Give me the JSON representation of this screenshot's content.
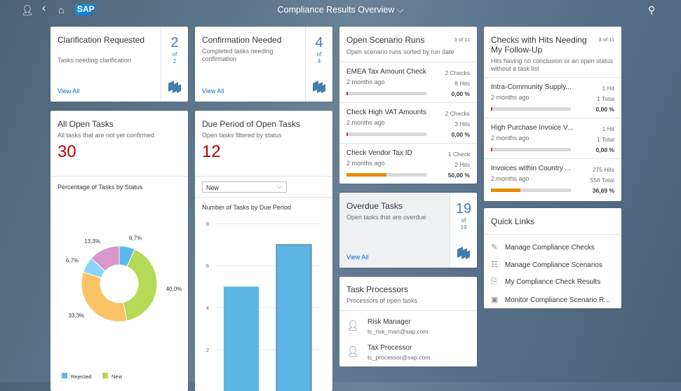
{
  "header": {
    "title": "Compliance Results Overview",
    "logo": "SAP",
    "icons": [
      "user-icon",
      "back-icon",
      "home-icon",
      "search-icon"
    ]
  },
  "cards": {
    "clarification": {
      "title": "Clarification Requested",
      "subtitle": "Tasks needing clarification",
      "count": "2",
      "of": "of",
      "total": "2",
      "link": "View All"
    },
    "confirmation": {
      "title": "Confirmation Needed",
      "subtitle": "Completed tasks needing confirmation",
      "count": "4",
      "of": "of",
      "total": "4",
      "link": "View All"
    },
    "all_open": {
      "title": "All Open Tasks",
      "subtitle": "All tasks that are not yet confirmed",
      "value": "30",
      "chart_title": "Percentage of Tasks by Status"
    },
    "due_period": {
      "title": "Due Period of Open Tasks",
      "subtitle": "Open tasks filtered by status",
      "value": "12",
      "filter": "New",
      "chart_title": "Number of Tasks by Due Period"
    },
    "scenario_runs": {
      "title": "Open Scenario Runs",
      "counter": "3 of 11",
      "subtitle": "Open scenario runs sorted by run date",
      "items": [
        {
          "name": "EMEA Tax Amount Check",
          "ago": "2 months ago",
          "checks": "2 Checks",
          "hits": "8 Hits",
          "pct": "0,00 %",
          "fill": 0
        },
        {
          "name": "Check High VAT Amounts",
          "ago": "2 months ago",
          "checks": "2 Checks",
          "hits": "3 Hits",
          "pct": "0,00 %",
          "fill": 0
        },
        {
          "name": "Check Vendor Tax ID",
          "ago": "2 months ago",
          "checks": "1 Check",
          "hits": "2 Hits",
          "pct": "50,00 %",
          "fill": 50
        }
      ]
    },
    "followup": {
      "title": "Checks with Hits Needing My Follow-Up",
      "counter": "3 of 11",
      "subtitle": "Hits having no conclusion or an open status without a task list",
      "items": [
        {
          "name": "Intra-Community Supply...",
          "ago": "2 months ago",
          "hits": "1 Hit",
          "total": "1 Total",
          "pct": "0,00 %",
          "fill": 0
        },
        {
          "name": "High Purchase Invoice V...",
          "ago": "2 months ago",
          "hits": "1 Hit",
          "total": "1 Total",
          "pct": "0,00 %",
          "fill": 0
        },
        {
          "name": "Invoices within Country ...",
          "ago": "2 months ago",
          "hits": "275 Hits",
          "total": "556 Total",
          "pct": "36,69 %",
          "fill": 36.69
        }
      ]
    },
    "overdue": {
      "title": "Overdue Tasks",
      "subtitle": "Open tasks that are overdue",
      "count": "19",
      "of": "of",
      "total": "19",
      "link": "View All"
    },
    "processors": {
      "title": "Task Processors",
      "subtitle": "Processors of open tasks",
      "people": [
        {
          "name": "Risk Manager",
          "email": "tc_risk_man@sap.com"
        },
        {
          "name": "Tax Processor",
          "email": "tc_processor@sap.com"
        }
      ]
    },
    "quick_links": {
      "title": "Quick Links",
      "items": [
        {
          "label": "Manage Compliance Checks",
          "icon": "pencil-icon",
          "glyph": "✎"
        },
        {
          "label": "Manage Compliance Scenarios",
          "icon": "checklist-icon",
          "glyph": "☷"
        },
        {
          "label": "My Compliance Check Results",
          "icon": "user-report-icon",
          "glyph": "⎘"
        },
        {
          "label": "Monitor Compliance Scenario R...",
          "icon": "monitor-icon",
          "glyph": "▣"
        }
      ]
    }
  },
  "chart_data": [
    {
      "type": "pie",
      "title": "Percentage of Tasks by Status",
      "donut": true,
      "slices": [
        {
          "label": "6,7%",
          "value": 6.7,
          "color": "#5cbae6"
        },
        {
          "label": "40,0%",
          "value": 40.0,
          "color": "#b6d957"
        },
        {
          "label": "33,3%",
          "value": 33.3,
          "color": "#fac364"
        },
        {
          "label": "6,7%",
          "value": 6.7,
          "color": "#8cd3ff"
        },
        {
          "label": "13,3%",
          "value": 13.3,
          "color": "#d998cb"
        }
      ],
      "legend": [
        {
          "name": "Rejected",
          "color": "#5cbae6"
        },
        {
          "name": "New",
          "color": "#b6d957"
        }
      ],
      "legend_position": "bottom"
    },
    {
      "type": "bar",
      "title": "Number of Tasks by Due Period",
      "values": [
        5,
        7
      ],
      "ylim": [
        0,
        8
      ],
      "yticks": [
        "2",
        "4",
        "6",
        "8"
      ],
      "grid": true,
      "color": "#5cb5e5"
    }
  ]
}
